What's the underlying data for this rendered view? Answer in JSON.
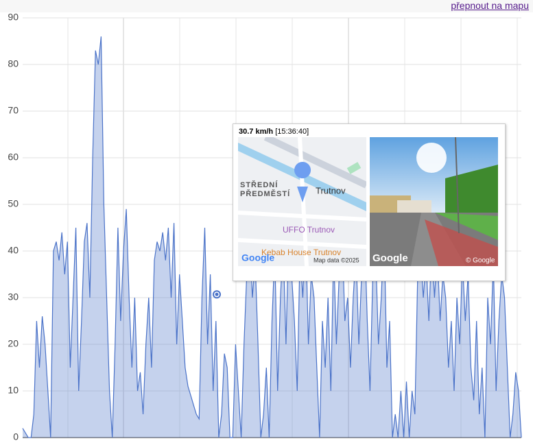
{
  "chart_data": {
    "type": "area",
    "switch_link": "přepnout na mapu",
    "values": [
      2,
      1,
      0,
      0,
      5,
      25,
      15,
      26,
      20,
      10,
      0,
      40,
      42,
      38,
      44,
      35,
      42,
      15,
      30,
      45,
      10,
      25,
      42,
      46,
      30,
      60,
      83,
      80,
      86,
      50,
      30,
      10,
      0,
      20,
      45,
      25,
      40,
      49,
      30,
      15,
      30,
      10,
      14,
      5,
      20,
      30,
      15,
      38,
      42,
      40,
      44,
      38,
      45,
      30,
      46,
      20,
      35,
      25,
      15,
      11,
      9,
      7,
      5,
      4,
      30,
      45,
      20,
      35,
      10,
      25,
      0,
      5,
      18,
      15,
      0,
      0,
      20,
      10,
      0,
      20,
      35,
      45,
      30,
      38,
      20,
      0,
      5,
      15,
      0,
      25,
      40,
      10,
      30,
      42,
      20,
      45,
      35,
      25,
      10,
      40,
      30,
      45,
      20,
      35,
      30,
      15,
      0,
      25,
      15,
      30,
      10,
      40,
      20,
      35,
      45,
      25,
      30,
      15,
      30,
      40,
      20,
      35,
      45,
      25,
      10,
      35,
      40,
      20,
      30,
      45,
      15,
      25,
      0,
      5,
      0,
      10,
      0,
      12,
      0,
      10,
      5,
      35,
      40,
      30,
      38,
      25,
      42,
      30,
      40,
      25,
      35,
      30,
      15,
      25,
      10,
      30,
      20,
      38,
      25,
      35,
      15,
      8,
      25,
      5,
      15,
      0,
      30,
      20,
      38,
      10,
      25,
      35,
      30,
      15,
      0,
      5,
      14,
      10,
      0
    ],
    "color": "#4a72c8",
    "ylim": [
      0,
      90
    ],
    "yticks": [
      0,
      10,
      20,
      30,
      40,
      50,
      60,
      70,
      80,
      90
    ],
    "grid": true,
    "tooltip": {
      "speed": 30.7,
      "speed_label": "30.7 km/h",
      "time": "[15:36:40]",
      "map_labels": [
        "STŘEDNÍ",
        "PŘEDMĚSTÍ",
        "Trutnov",
        "UFFO Trutnov",
        "Kebab House Trutnov",
        "Map data ©2025",
        "Google"
      ],
      "street_labels": [
        "Google",
        "© Google"
      ]
    }
  }
}
